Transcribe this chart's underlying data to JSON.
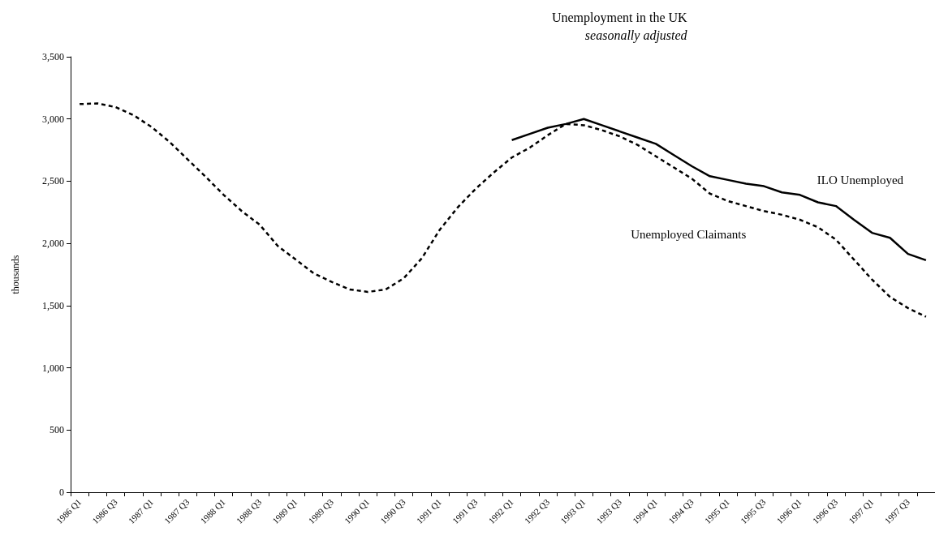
{
  "chart_data": {
    "type": "line",
    "title": "Unemployment in the UK",
    "subtitle": "seasonally adjusted",
    "ylabel": "thousands",
    "categories": [
      "1986 Q1",
      null,
      "1986 Q3",
      null,
      "1987 Q1",
      null,
      "1987 Q3",
      null,
      "1988 Q1",
      null,
      "1988 Q3",
      null,
      "1989 Q1",
      null,
      "1989 Q3",
      null,
      "1990 Q1",
      null,
      "1990 Q3",
      null,
      "1991 Q1",
      null,
      "1991 Q3",
      null,
      "1992 Q1",
      null,
      "1992 Q3",
      null,
      "1993 Q1",
      null,
      "1993 Q3",
      null,
      "1994 Q1",
      null,
      "1994 Q3",
      null,
      "1995 Q1",
      null,
      "1995 Q3",
      null,
      "1996 Q1",
      null,
      "1996 Q3",
      null,
      "1997 Q1",
      null,
      "1997 Q3",
      null
    ],
    "series": [
      {
        "name": "ILO Unemployed",
        "color": "#000000",
        "line_style": "solid",
        "values": [
          null,
          null,
          null,
          null,
          null,
          null,
          null,
          null,
          null,
          null,
          null,
          null,
          null,
          null,
          null,
          null,
          null,
          null,
          null,
          null,
          null,
          null,
          null,
          null,
          2830,
          2880,
          2930,
          2960,
          3000,
          2950,
          2900,
          2850,
          2800,
          2710,
          2620,
          2540,
          2510,
          2480,
          2460,
          2410,
          2390,
          2330,
          2300,
          2190,
          2085,
          2045,
          1915,
          1865
        ]
      },
      {
        "name": "Unemployed Claimants",
        "color": "#000000",
        "line_style": "dashed",
        "values": [
          3120,
          3125,
          3095,
          3030,
          2935,
          2815,
          2675,
          2535,
          2390,
          2260,
          2150,
          1980,
          1870,
          1760,
          1690,
          1630,
          1610,
          1630,
          1720,
          1880,
          2110,
          2290,
          2440,
          2570,
          2690,
          2770,
          2870,
          2960,
          2950,
          2910,
          2860,
          2790,
          2700,
          2610,
          2520,
          2400,
          2340,
          2300,
          2260,
          2230,
          2190,
          2130,
          2030,
          1870,
          1710,
          1570,
          1480,
          1410
        ]
      }
    ],
    "ylim": [
      0,
      3500
    ],
    "yticks": [
      0,
      500,
      {
        "value": 1000,
        "label": "1,000"
      },
      {
        "value": 1500,
        "label": "1,500"
      },
      {
        "value": 2000,
        "label": "2,000"
      },
      {
        "value": 2500,
        "label": "2,500"
      },
      {
        "value": 3000,
        "label": "3,000"
      },
      {
        "value": 3500,
        "label": "3,500"
      }
    ],
    "grid": false,
    "legend": false,
    "marker": "none"
  }
}
